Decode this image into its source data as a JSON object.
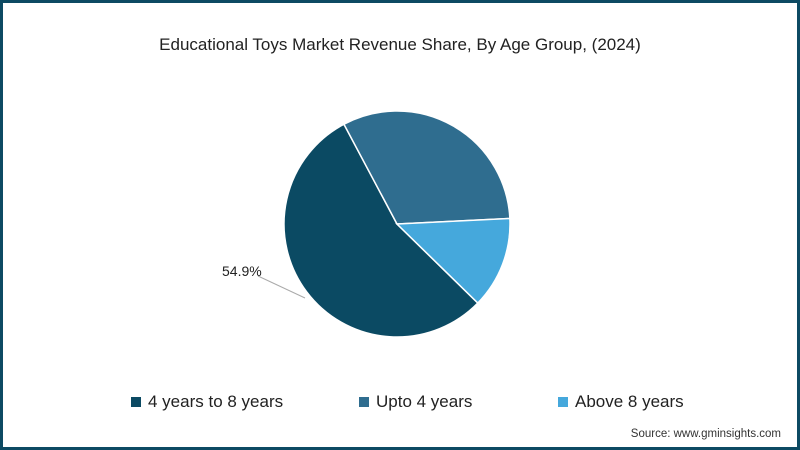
{
  "title": "Educational Toys Market Revenue Share, By Age Group, (2024)",
  "source": "Source: www.gminsights.com",
  "legend": [
    {
      "label": "4 years to 8 years",
      "color": "#0b4a63"
    },
    {
      "label": "Upto 4 years",
      "color": "#2f6d8f"
    },
    {
      "label": "Above 8 years",
      "color": "#45a8dc"
    }
  ],
  "data_label": "54.9%",
  "chart_data": {
    "type": "pie",
    "title": "Educational Toys Market Revenue Share, By Age Group, (2024)",
    "categories": [
      "4 years to 8 years",
      "Upto 4 years",
      "Above 8 years"
    ],
    "values": [
      54.9,
      32.0,
      13.1
    ],
    "colors": [
      "#0b4a63",
      "#2f6d8f",
      "#45a8dc"
    ],
    "annotations": [
      "54.9%"
    ],
    "legend_position": "bottom",
    "source": "Source: www.gminsights.com"
  }
}
